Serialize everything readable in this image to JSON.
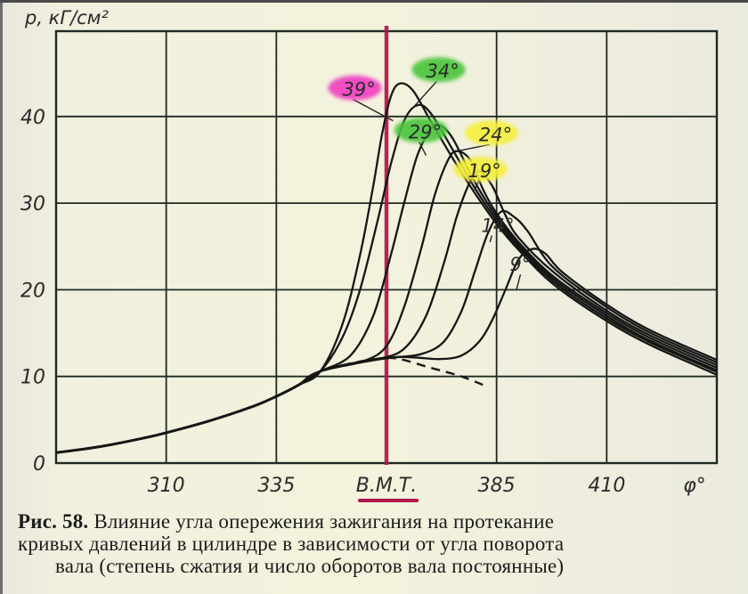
{
  "chart_data": {
    "type": "line",
    "title": "Рис. 58. Влияние угла опережения зажигания на протекание кривых давлений в цилиндре в зависимости от угла поворота вала (степень сжатия и число оборотов вала постоянные)",
    "xlabel": "φ°",
    "ylabel": "p, кГ/см²",
    "xlim": [
      285,
      435
    ],
    "ylim": [
      0,
      50
    ],
    "x_ticks": [
      {
        "value": 310,
        "label": "310"
      },
      {
        "value": 335,
        "label": "335"
      },
      {
        "value": 360,
        "label": "В.М.Т."
      },
      {
        "value": 385,
        "label": "385"
      },
      {
        "value": 410,
        "label": "410"
      }
    ],
    "y_ticks": [
      {
        "value": 0,
        "label": "0"
      },
      {
        "value": 10,
        "label": "10"
      },
      {
        "value": 20,
        "label": "20"
      },
      {
        "value": 30,
        "label": "30"
      },
      {
        "value": 40,
        "label": "40"
      }
    ],
    "grid": true,
    "tdc_marker": {
      "x": 360,
      "label": "В.М.Т.",
      "color": "#b0154a"
    },
    "common_compression": {
      "x": [
        285,
        295,
        305,
        310,
        320,
        330,
        335,
        340,
        345
      ],
      "y": [
        1.2,
        1.9,
        2.9,
        3.5,
        4.9,
        6.6,
        7.7,
        9.0,
        10.6
      ]
    },
    "motoring_dashed": {
      "x": [
        350,
        356,
        362,
        370,
        377,
        383
      ],
      "y": [
        11.3,
        11.9,
        12.1,
        11.0,
        10.0,
        8.8
      ]
    },
    "series": [
      {
        "name": "39°",
        "advance_deg": 39,
        "highlight": "#f03cc0",
        "x": [
          345,
          350,
          354,
          357,
          359,
          361,
          363,
          366,
          370,
          375,
          380,
          385,
          390,
          398,
          410,
          420,
          435
        ],
        "y": [
          10.6,
          16,
          24,
          32,
          38,
          42.3,
          43.8,
          43.0,
          39.5,
          35.2,
          31.2,
          27.6,
          24.6,
          20.6,
          16.4,
          13.6,
          10.2
        ]
      },
      {
        "name": "34°",
        "advance_deg": 34,
        "highlight": "#49c43a",
        "x": [
          345,
          350,
          354,
          358,
          361,
          364,
          367,
          370,
          375,
          380,
          385,
          390,
          398,
          410,
          420,
          435
        ],
        "y": [
          10.6,
          14.5,
          20,
          28,
          34.5,
          39.5,
          41.3,
          40.4,
          36.2,
          31.8,
          28.0,
          24.9,
          20.9,
          16.7,
          13.9,
          10.5
        ]
      },
      {
        "name": "29°",
        "advance_deg": 29,
        "highlight": "#49c43a",
        "x": [
          346,
          352,
          357,
          361,
          364,
          367,
          370,
          372,
          375,
          380,
          385,
          390,
          398,
          410,
          420,
          435
        ],
        "y": [
          10.8,
          12.5,
          17,
          24,
          30,
          35.5,
          38.5,
          39.0,
          37.5,
          32.5,
          28.4,
          25.2,
          21.2,
          17.0,
          14.1,
          10.7
        ]
      },
      {
        "name": "24°",
        "advance_deg": 24,
        "highlight": "#f5ef3a",
        "x": [
          348,
          355,
          360,
          364,
          368,
          371,
          374,
          376,
          379,
          382,
          385,
          390,
          398,
          410,
          420,
          435
        ],
        "y": [
          11.0,
          11.8,
          13.5,
          18,
          25,
          31,
          35,
          36.0,
          35.0,
          31.5,
          28.8,
          25.5,
          21.5,
          17.3,
          14.4,
          11.0
        ]
      },
      {
        "name": "19°",
        "advance_deg": 19,
        "highlight": "#f5ef3a",
        "x": [
          350,
          358,
          364,
          369,
          373,
          376,
          379,
          381,
          384,
          387,
          390,
          398,
          410,
          420,
          435
        ],
        "y": [
          11.3,
          12.0,
          13.2,
          17,
          23,
          28.5,
          32.5,
          33.7,
          32.0,
          28.6,
          26.0,
          22.0,
          17.6,
          14.7,
          11.3
        ]
      },
      {
        "name": "14°",
        "advance_deg": 14,
        "highlight": null,
        "x": [
          355,
          362,
          368,
          373,
          377,
          380,
          383,
          386,
          389,
          392,
          398,
          410,
          420,
          435
        ],
        "y": [
          11.8,
          12.2,
          12.6,
          14,
          17.5,
          22,
          26.5,
          29.0,
          28.4,
          26.8,
          22.5,
          18.0,
          15.0,
          11.6
        ]
      },
      {
        "name": "9°",
        "advance_deg": 9,
        "highlight": null,
        "x": [
          360,
          366,
          372,
          377,
          381,
          384,
          387,
          390,
          393,
          396,
          400,
          410,
          420,
          435
        ],
        "y": [
          12.1,
          12.2,
          12.0,
          12.4,
          14,
          16.5,
          20,
          23.5,
          24.7,
          24.2,
          22.0,
          18.3,
          15.3,
          11.9
        ]
      }
    ],
    "annotations": [
      {
        "text": "39°",
        "highlight": "#f03cc0",
        "label_x": 350,
        "label_y": 43.2,
        "target_x": 361.5,
        "target_y": 39.5
      },
      {
        "text": "34°",
        "highlight": "#49c43a",
        "label_x": 369,
        "label_y": 45.3,
        "target_x": 366,
        "target_y": 41.0
      },
      {
        "text": "29°",
        "highlight": "#49c43a",
        "label_x": 365,
        "label_y": 38.3,
        "target_x": 369,
        "target_y": 35.5
      },
      {
        "text": "24°",
        "highlight": "#f5ef3a",
        "label_x": 381,
        "label_y": 38.0,
        "target_x": 376,
        "target_y": 36.0
      },
      {
        "text": "19°",
        "highlight": "#f5ef3a",
        "label_x": 378.5,
        "label_y": 33.8,
        "target_x": 380,
        "target_y": 31.5
      },
      {
        "text": "14°",
        "highlight": null,
        "label_x": 381.5,
        "label_y": 27.5,
        "target_x": 383.5,
        "target_y": 25.5
      },
      {
        "text": "9°",
        "highlight": null,
        "label_x": 388,
        "label_y": 23.0,
        "target_x": 389.5,
        "target_y": 20.0
      }
    ]
  },
  "axes": {
    "ylabel": "p, кГ/см²",
    "xlabel": "φ°",
    "tdc_label": "В.М.Т."
  },
  "caption": {
    "fig_number": "Рис. 58.",
    "line1": "Влияние угла опережения зажигания на протекание",
    "line2": "кривых давлений в цилиндре в зависимости от угла поворота",
    "line3": "вала (степень сжатия и число оборотов вала постоянные)"
  }
}
